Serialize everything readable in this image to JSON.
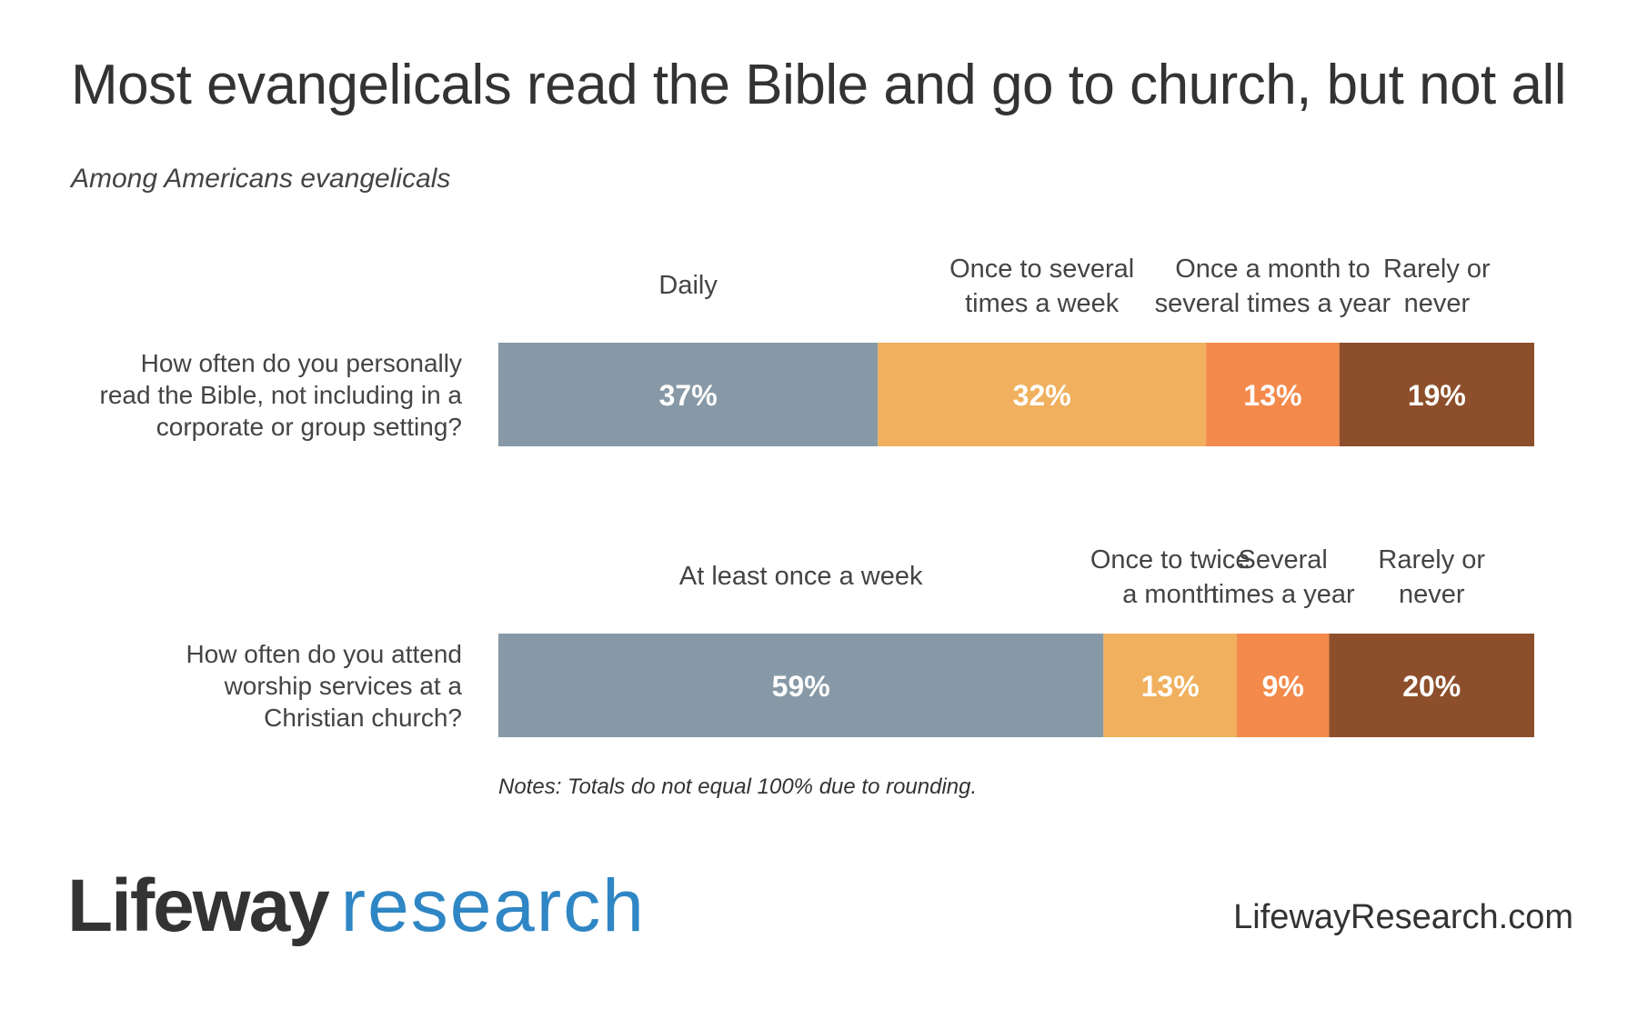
{
  "header": {
    "title": "Most evangelicals read the Bible and go to church, but not all",
    "subtitle": "Among Americans evangelicals"
  },
  "chart_data": {
    "type": "bar",
    "stacked": true,
    "orientation": "horizontal",
    "unit": "%",
    "rows": [
      {
        "question": [
          "How often do you personally",
          "read the Bible, not including in a",
          "corporate or group setting?"
        ],
        "segments": [
          {
            "category": [
              "Daily"
            ],
            "value": 37,
            "label": "37%",
            "color": "#8799a6"
          },
          {
            "category": [
              "Once to several",
              "times a week"
            ],
            "value": 32,
            "label": "32%",
            "color": "#f0b05d"
          },
          {
            "category": [
              "Once a month to",
              "several times a year"
            ],
            "value": 13,
            "label": "13%",
            "color": "#f38a4b"
          },
          {
            "category": [
              "Rarely or",
              "never"
            ],
            "value": 19,
            "label": "19%",
            "color": "#8d4f2b"
          }
        ]
      },
      {
        "question": [
          "How often do you attend",
          "worship services at a",
          "Christian church?"
        ],
        "segments": [
          {
            "category": [
              "At least once a week"
            ],
            "value": 59,
            "label": "59%",
            "color": "#8799a6"
          },
          {
            "category": [
              "Once to twice",
              "a month"
            ],
            "value": 13,
            "label": "13%",
            "color": "#f0b05d"
          },
          {
            "category": [
              "Several",
              "times a year"
            ],
            "value": 9,
            "label": "9%",
            "color": "#f38a4b"
          },
          {
            "category": [
              "Rarely or",
              "never"
            ],
            "value": 20,
            "label": "20%",
            "color": "#8d4f2b"
          }
        ]
      }
    ]
  },
  "notes": "Notes: Totals do not equal 100% due to rounding.",
  "footer": {
    "logo_part1": "Lifeway",
    "logo_part2": "research",
    "website": "LifewayResearch.com"
  },
  "colors": {
    "text": "#333333",
    "brand_blue": "#2f86c4"
  }
}
